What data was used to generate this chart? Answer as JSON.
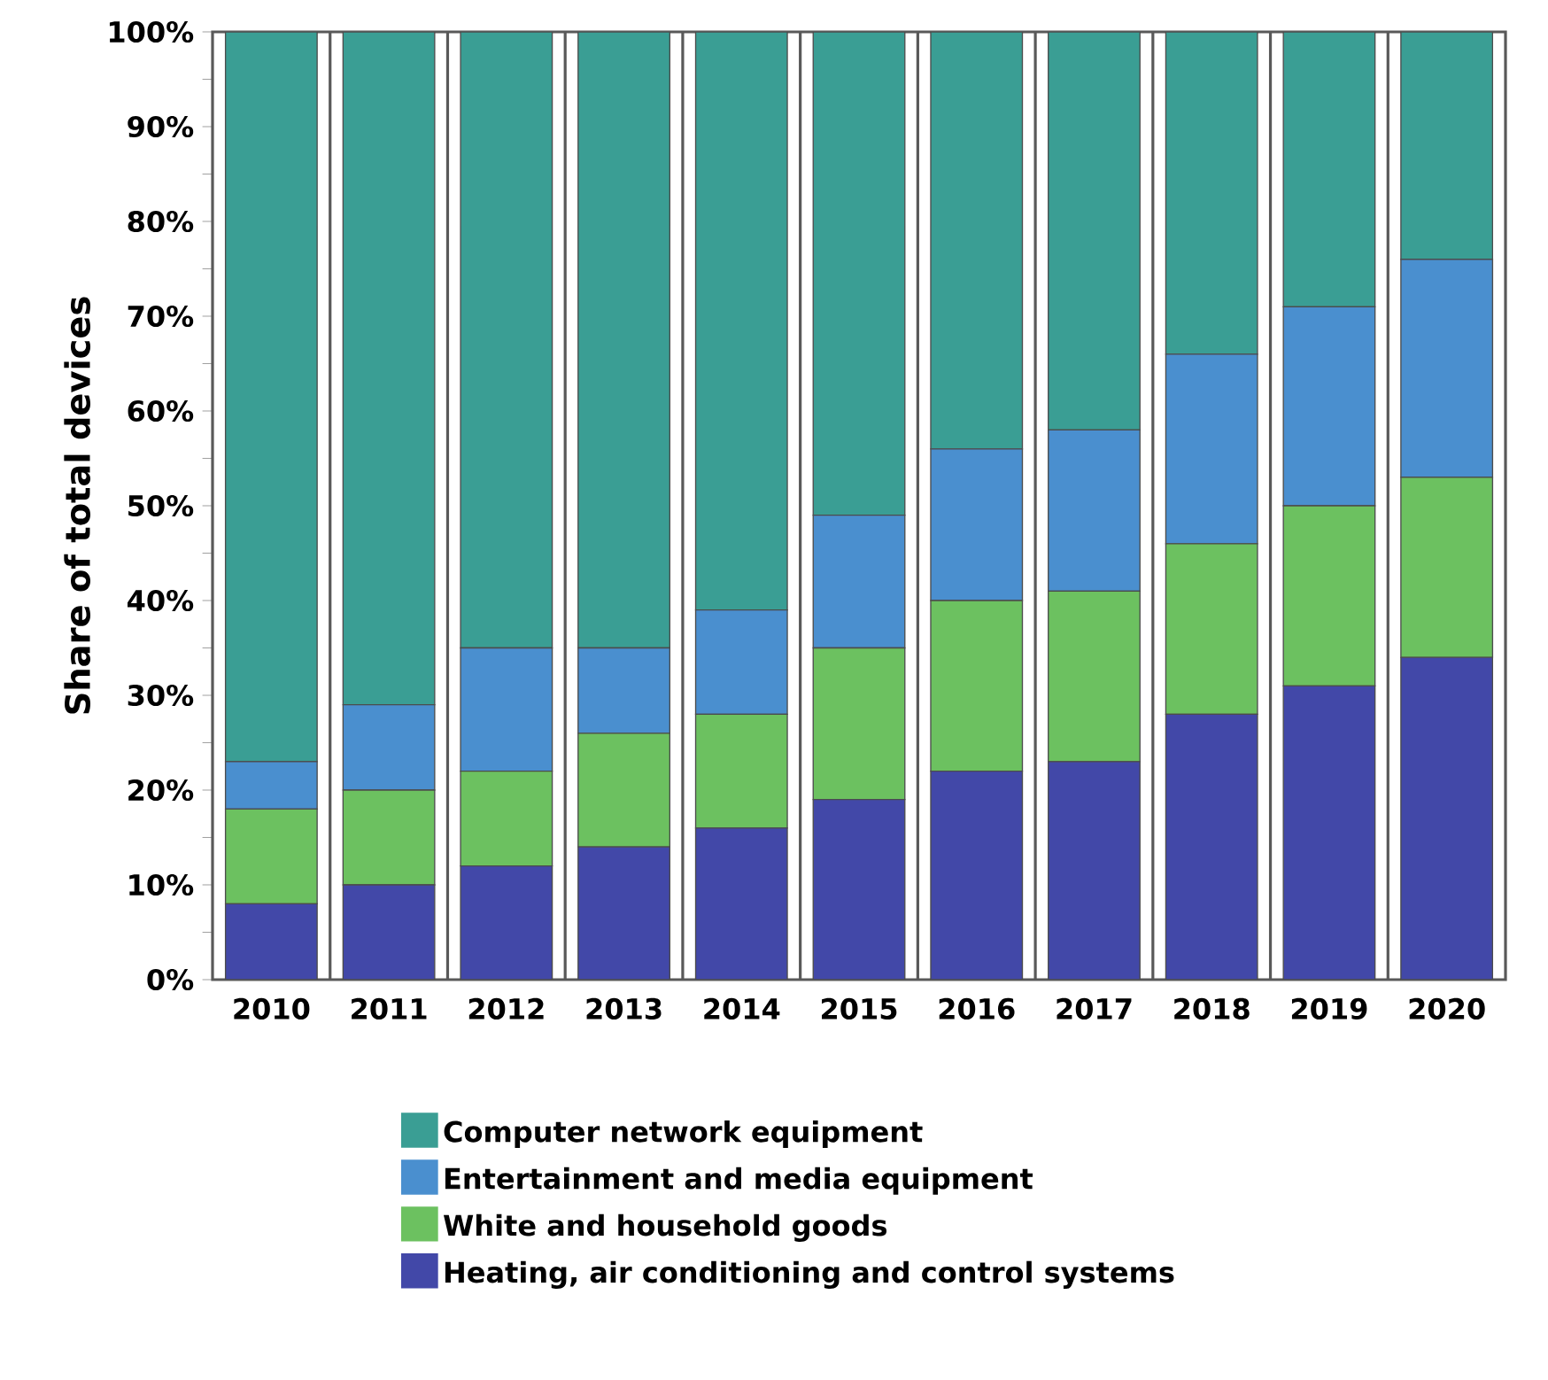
{
  "chart_data": {
    "type": "bar",
    "stacked": true,
    "ylabel": "Share of total devices",
    "categories": [
      "2010",
      "2011",
      "2012",
      "2013",
      "2014",
      "2015",
      "2016",
      "2017",
      "2018",
      "2019",
      "2020"
    ],
    "series": [
      {
        "name": "Heating, air conditioning and control systems",
        "color": "#4248a8",
        "values": [
          8,
          10,
          12,
          14,
          16,
          19,
          22,
          23,
          28,
          31,
          34
        ]
      },
      {
        "name": "White and household goods",
        "color": "#6cc160",
        "values": [
          10,
          10,
          10,
          12,
          12,
          16,
          18,
          18,
          18,
          19,
          19
        ]
      },
      {
        "name": "Entertainment and media equipment",
        "color": "#4a8fcf",
        "values": [
          5,
          9,
          13,
          9,
          11,
          14,
          16,
          17,
          20,
          21,
          23
        ]
      },
      {
        "name": "Computer network equipment",
        "color": "#3a9e94",
        "values": [
          77,
          71,
          65,
          65,
          61,
          51,
          44,
          42,
          34,
          29,
          24
        ]
      }
    ],
    "ylim": [
      0,
      100
    ],
    "yticks": [
      {
        "value": 0,
        "label": "0%"
      },
      {
        "value": 5,
        "label": null
      },
      {
        "value": 10,
        "label": "10%"
      },
      {
        "value": 15,
        "label": null
      },
      {
        "value": 20,
        "label": "20%"
      },
      {
        "value": 25,
        "label": null
      },
      {
        "value": 30,
        "label": "30%"
      },
      {
        "value": 35,
        "label": null
      },
      {
        "value": 40,
        "label": "40%"
      },
      {
        "value": 45,
        "label": null
      },
      {
        "value": 50,
        "label": "50%"
      },
      {
        "value": 55,
        "label": null
      },
      {
        "value": 60,
        "label": "60%"
      },
      {
        "value": 65,
        "label": null
      },
      {
        "value": 70,
        "label": "70%"
      },
      {
        "value": 75,
        "label": null
      },
      {
        "value": 80,
        "label": "80%"
      },
      {
        "value": 85,
        "label": null
      },
      {
        "value": 90,
        "label": "90%"
      },
      {
        "value": 95,
        "label": null
      },
      {
        "value": 100,
        "label": "100%"
      }
    ],
    "grid": "x",
    "legend": "bottom"
  }
}
